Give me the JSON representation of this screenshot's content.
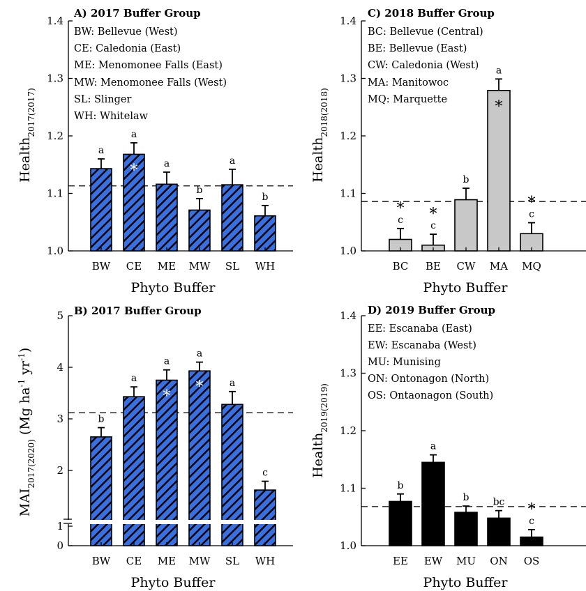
{
  "colors": {
    "blue": "#3a6fe0",
    "gray": "#c8c8c8",
    "black": "#000000"
  },
  "chart_data": [
    {
      "panel": "A",
      "type": "bar",
      "title": "A) 2017 Buffer Group",
      "xlabel": "Phyto Buffer",
      "ylabel_main": "Health",
      "ylabel_sub": "2017(2017)",
      "ylim": [
        1.0,
        1.4
      ],
      "yticks": [
        "1.0",
        "1.1",
        "1.2",
        "1.3",
        "1.4"
      ],
      "reference_line": 1.113,
      "legend": [
        "BW: Bellevue (West)",
        "CE: Caledonia (East)",
        "ME: Menomonee Falls (East)",
        "MW: Menomonee Falls (West)",
        "SL: Slinger",
        "WH: Whitelaw"
      ],
      "fill": "hatched blue",
      "categories": [
        "BW",
        "CE",
        "ME",
        "MW",
        "SL",
        "WH"
      ],
      "values": [
        1.143,
        1.168,
        1.116,
        1.071,
        1.115,
        1.061
      ],
      "errors": [
        0.017,
        0.02,
        0.021,
        0.02,
        0.027,
        0.018
      ],
      "letters": [
        "a",
        "a",
        "a",
        "b",
        "a",
        "b"
      ],
      "significant": [
        false,
        true,
        false,
        false,
        false,
        true
      ]
    },
    {
      "panel": "B",
      "type": "bar",
      "title": "B) 2017 Buffer Group",
      "xlabel": "Phyto Buffer",
      "ylabel_main": "MAI",
      "ylabel_sub": "2017(2020)",
      "ylabel_tail": " (Mg ha",
      "ylabel_sup1": "-1",
      "ylabel_mid": " yr",
      "ylabel_sup2": "-1",
      "ylabel_end": ")",
      "ylim": [
        0,
        5
      ],
      "axis_break": [
        0,
        1
      ],
      "yticks": [
        "0",
        "1",
        "2",
        "3",
        "4",
        "5"
      ],
      "reference_line": 3.12,
      "fill": "hatched blue",
      "categories": [
        "BW",
        "CE",
        "ME",
        "MW",
        "SL",
        "WH"
      ],
      "values": [
        2.65,
        3.43,
        3.75,
        3.93,
        3.28,
        1.62
      ],
      "errors": [
        0.18,
        0.19,
        0.2,
        0.17,
        0.25,
        0.17
      ],
      "letters": [
        "b",
        "a",
        "a",
        "a",
        "a",
        "c"
      ],
      "significant": [
        true,
        false,
        true,
        true,
        false,
        true
      ]
    },
    {
      "panel": "C",
      "type": "bar",
      "title": "C) 2018 Buffer Group",
      "xlabel": "Phyto Buffer",
      "ylabel_main": "Health",
      "ylabel_sub": "2018(2018)",
      "ylim": [
        1.0,
        1.4
      ],
      "yticks": [
        "1.0",
        "1.1",
        "1.2",
        "1.3",
        "1.4"
      ],
      "reference_line": 1.086,
      "legend": [
        "BC: Bellevue (Central)",
        "BE: Bellevue (East)",
        "CW: Caledonia (West)",
        "MA: Manitowoc",
        "MQ: Marquette"
      ],
      "fill": "gray",
      "categories": [
        "BC",
        "BE",
        "CW",
        "MA",
        "MQ"
      ],
      "values": [
        1.02,
        1.01,
        1.089,
        1.279,
        1.03
      ],
      "errors": [
        0.019,
        0.019,
        0.02,
        0.02,
        0.019
      ],
      "letters": [
        "c",
        "c",
        "b",
        "a",
        "c"
      ],
      "significant": [
        true,
        true,
        false,
        true,
        true
      ]
    },
    {
      "panel": "D",
      "type": "bar",
      "title": "D) 2019 Buffer Group",
      "xlabel": "Phyto Buffer",
      "ylabel_main": "Health",
      "ylabel_sub": "2019(2019)",
      "ylim": [
        1.0,
        1.4
      ],
      "yticks": [
        "1.0",
        "1.1",
        "1.2",
        "1.3",
        "1.4"
      ],
      "reference_line": 1.068,
      "legend": [
        "EE: Escanaba (East)",
        "EW: Escanaba (West)",
        "MU: Munising",
        "ON: Ontonagon (North)",
        "OS: Ontaonagon (South)"
      ],
      "fill": "black",
      "categories": [
        "EE",
        "EW",
        "MU",
        "ON",
        "OS"
      ],
      "values": [
        1.077,
        1.145,
        1.058,
        1.048,
        1.015
      ],
      "errors": [
        0.013,
        0.013,
        0.011,
        0.013,
        0.013
      ],
      "letters": [
        "b",
        "a",
        "b",
        "bc",
        "c"
      ],
      "significant": [
        false,
        false,
        false,
        false,
        true
      ]
    }
  ]
}
